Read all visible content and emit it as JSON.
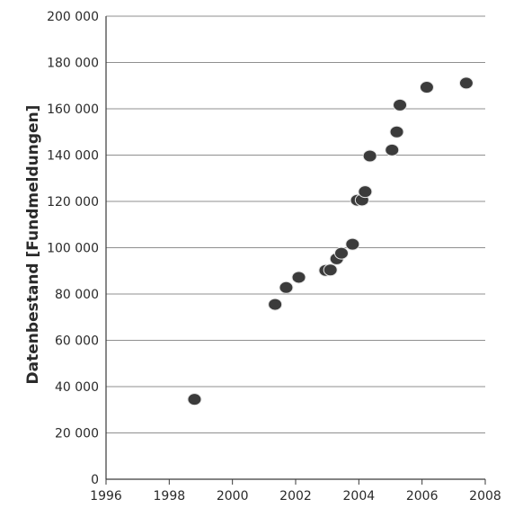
{
  "chart_data": {
    "type": "scatter",
    "title": "",
    "xlabel": "",
    "ylabel": "Datenbestand  [Fundmeldungen]",
    "xlim": [
      1996,
      2008
    ],
    "ylim": [
      0,
      200000
    ],
    "x_ticks": [
      1996,
      1998,
      2000,
      2002,
      2004,
      2006,
      2008
    ],
    "y_ticks": [
      0,
      20000,
      40000,
      60000,
      80000,
      100000,
      120000,
      140000,
      160000,
      180000,
      200000
    ],
    "x_tick_labels": [
      "1996",
      "1998",
      "2000",
      "2002",
      "2004",
      "2006",
      "2008"
    ],
    "y_tick_labels": [
      "0",
      "20 000",
      "40 000",
      "60 000",
      "80 000",
      "100 000",
      "120 000",
      "140 000",
      "160 000",
      "180 000",
      "200 000"
    ],
    "grid": "horizontal",
    "marker_color": "#3b3b3b",
    "points": [
      {
        "x": 1998.8,
        "y": 34500
      },
      {
        "x": 2001.35,
        "y": 75500
      },
      {
        "x": 2001.7,
        "y": 82800
      },
      {
        "x": 2002.1,
        "y": 87200
      },
      {
        "x": 2002.95,
        "y": 90200
      },
      {
        "x": 2003.1,
        "y": 90400
      },
      {
        "x": 2003.3,
        "y": 95200
      },
      {
        "x": 2003.45,
        "y": 97600
      },
      {
        "x": 2003.8,
        "y": 101500
      },
      {
        "x": 2003.95,
        "y": 120500
      },
      {
        "x": 2004.1,
        "y": 120600
      },
      {
        "x": 2004.2,
        "y": 124200
      },
      {
        "x": 2004.35,
        "y": 139600
      },
      {
        "x": 2005.05,
        "y": 142200
      },
      {
        "x": 2005.2,
        "y": 150000
      },
      {
        "x": 2005.3,
        "y": 161600
      },
      {
        "x": 2006.15,
        "y": 169300
      },
      {
        "x": 2007.4,
        "y": 171100
      }
    ]
  }
}
